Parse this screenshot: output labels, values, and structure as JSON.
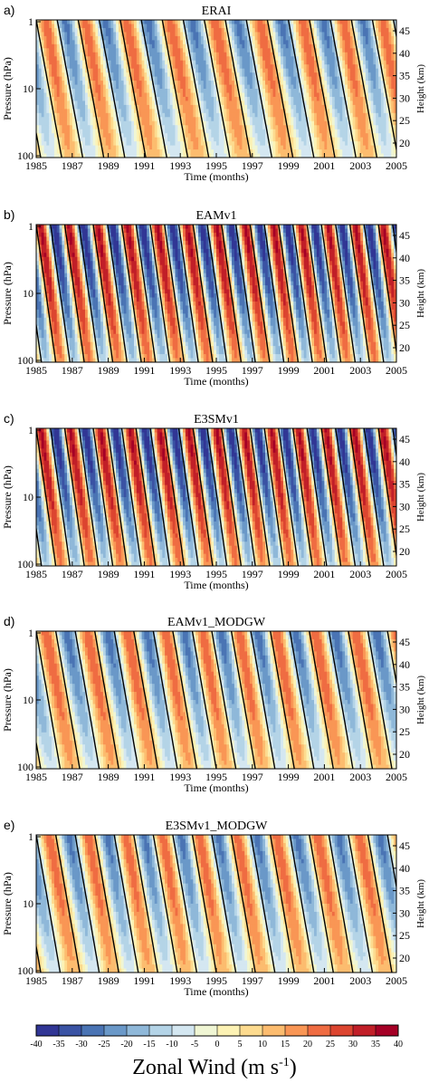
{
  "figure": {
    "colorbar_label": "Zonal Wind (m s",
    "colorbar_label_sup": "-1",
    "colorbar_label_end": ")"
  },
  "chart_data": [
    {
      "type": "heatmap",
      "panel_label": "a)",
      "title": "ERAI",
      "xlabel": "Time (months)",
      "ylabel": "Pressure (hPa)",
      "ylabel_right": "Height (km)",
      "x_range": [
        1985,
        2005
      ],
      "x_ticks": [
        "1985",
        "1987",
        "1989",
        "1991",
        "1993",
        "1995",
        "1997",
        "1999",
        "2001",
        "2003",
        "2005"
      ],
      "y_log_scale": true,
      "y_range_hpa": [
        100,
        1
      ],
      "y_ticks": [
        "1",
        "10",
        "100"
      ],
      "right_axis_ticks": [
        "20",
        "25",
        "30",
        "35",
        "40",
        "45"
      ],
      "oscillation": {
        "period_months": 28,
        "amplitude_ms": 25,
        "descent_months": 17
      }
    },
    {
      "type": "heatmap",
      "panel_label": "b)",
      "title": "EAMv1",
      "xlabel": "Time (months)",
      "ylabel": "Pressure (hPa)",
      "ylabel_right": "Height (km)",
      "x_range": [
        1985,
        2005
      ],
      "x_ticks": [
        "1985",
        "1987",
        "1989",
        "1991",
        "1993",
        "1995",
        "1997",
        "1999",
        "2001",
        "2003",
        "2005"
      ],
      "y_log_scale": true,
      "y_range_hpa": [
        100,
        1
      ],
      "y_ticks": [
        "1",
        "10",
        "100"
      ],
      "right_axis_ticks": [
        "20",
        "25",
        "30",
        "35",
        "40",
        "45"
      ],
      "oscillation": {
        "period_months": 19,
        "amplitude_ms": 38,
        "descent_months": 13
      }
    },
    {
      "type": "heatmap",
      "panel_label": "c)",
      "title": "E3SMv1",
      "xlabel": "Time (months)",
      "ylabel": "Pressure (hPa)",
      "ylabel_right": "Height (km)",
      "x_range": [
        1985,
        2005
      ],
      "x_ticks": [
        "1985",
        "1987",
        "1989",
        "1991",
        "1993",
        "1995",
        "1997",
        "1999",
        "2001",
        "2003",
        "2005"
      ],
      "y_log_scale": true,
      "y_range_hpa": [
        100,
        1
      ],
      "y_ticks": [
        "1",
        "10",
        "100"
      ],
      "right_axis_ticks": [
        "20",
        "25",
        "30",
        "35",
        "40",
        "45"
      ],
      "oscillation": {
        "period_months": 19,
        "amplitude_ms": 38,
        "descent_months": 13
      }
    },
    {
      "type": "heatmap",
      "panel_label": "d)",
      "title": "EAMv1_MODGW",
      "xlabel": "Time (months)",
      "ylabel": "Pressure (hPa)",
      "ylabel_right": "Height (km)",
      "x_range": [
        1985,
        2005
      ],
      "x_ticks": [
        "1985",
        "1987",
        "1989",
        "1991",
        "1993",
        "1995",
        "1997",
        "1999",
        "2001",
        "2003",
        "2005"
      ],
      "y_log_scale": true,
      "y_range_hpa": [
        100,
        1
      ],
      "y_ticks": [
        "1",
        "10",
        "100"
      ],
      "right_axis_ticks": [
        "20",
        "25",
        "30",
        "35",
        "40",
        "45"
      ],
      "oscillation": {
        "period_months": 26,
        "amplitude_ms": 26,
        "descent_months": 16
      }
    },
    {
      "type": "heatmap",
      "panel_label": "e)",
      "title": "E3SMv1_MODGW",
      "xlabel": "Time (months)",
      "ylabel": "Pressure (hPa)",
      "ylabel_right": "Height (km)",
      "x_range": [
        1985,
        2005
      ],
      "x_ticks": [
        "1985",
        "1987",
        "1989",
        "1991",
        "1993",
        "1995",
        "1997",
        "1999",
        "2001",
        "2003",
        "2005"
      ],
      "y_log_scale": true,
      "y_range_hpa": [
        100,
        1
      ],
      "y_ticks": [
        "1",
        "10",
        "100"
      ],
      "right_axis_ticks": [
        "20",
        "25",
        "30",
        "35",
        "40",
        "45"
      ],
      "oscillation": {
        "period_months": 26,
        "amplitude_ms": 25,
        "descent_months": 16
      }
    }
  ],
  "colorbar": {
    "ticks": [
      "-40",
      "-35",
      "-30",
      "-25",
      "-20",
      "-15",
      "-10",
      "-5",
      "0",
      "5",
      "10",
      "15",
      "20",
      "25",
      "30",
      "35",
      "40"
    ],
    "colors": [
      "#313695",
      "#3a53a4",
      "#4a74b4",
      "#6a98c8",
      "#8fb8d9",
      "#b4d4e7",
      "#d4e7f1",
      "#f0f6d4",
      "#fcf2b4",
      "#fddb8f",
      "#fcbc6f",
      "#f99655",
      "#ef6c42",
      "#dc4530",
      "#c11f28",
      "#a50026"
    ]
  }
}
